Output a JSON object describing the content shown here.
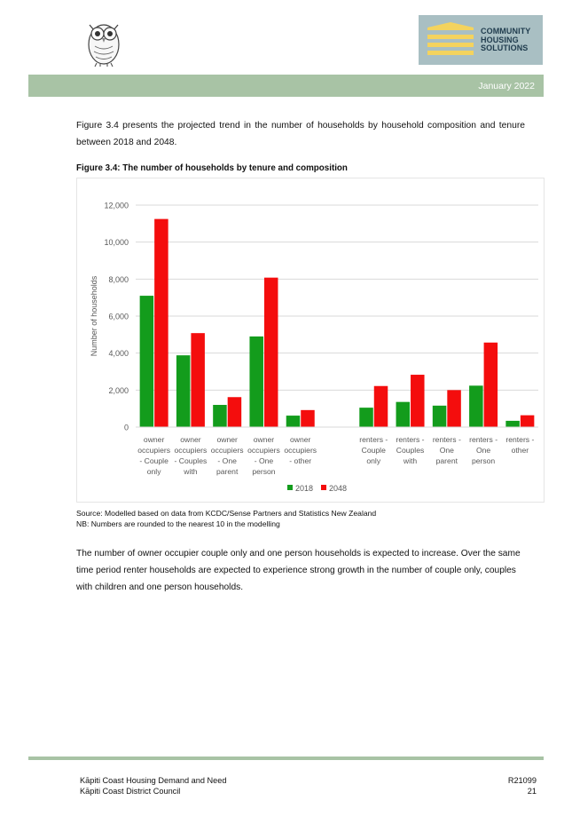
{
  "header": {
    "logo_lines": [
      "COMMUNITY",
      "HOUSING",
      "SOLUTIONS"
    ],
    "date": "January 2022"
  },
  "intro_text": "Figure 3.4 presents the projected trend in the number of households by household composition and tenure between 2018 and 2048.",
  "figure_title": "Figure 3.4:  The number of households by tenure and composition",
  "chart_data": {
    "type": "bar",
    "ylabel": "Number of households",
    "ylim": [
      0,
      12000
    ],
    "yticks": [
      "0",
      "2,000",
      "4,000",
      "6,000",
      "8,000",
      "10,000",
      "12,000"
    ],
    "categories": [
      [
        "owner",
        "occupiers",
        "- Couple",
        "only"
      ],
      [
        "owner",
        "occupiers",
        "- Couples",
        "with"
      ],
      [
        "owner",
        "occupiers",
        "- One",
        "parent"
      ],
      [
        "owner",
        "occupiers",
        "- One",
        "person"
      ],
      [
        "owner",
        "occupiers",
        "- other"
      ],
      [
        ""
      ],
      [
        "renters -",
        "Couple",
        "only"
      ],
      [
        "renters -",
        "Couples",
        "with"
      ],
      [
        "renters -",
        "One",
        "parent"
      ],
      [
        "renters -",
        "One",
        "person"
      ],
      [
        "renters -",
        "other"
      ]
    ],
    "series": [
      {
        "name": "2018",
        "color": "#139c1c",
        "values": [
          7100,
          3880,
          1200,
          4900,
          620,
          0,
          1050,
          1360,
          1160,
          2240,
          340
        ]
      },
      {
        "name": "2048",
        "color": "#f40d0d",
        "values": [
          11250,
          5080,
          1620,
          8080,
          920,
          0,
          2220,
          2830,
          2000,
          4570,
          640
        ]
      }
    ],
    "grid": true,
    "legend_position": "bottom"
  },
  "source_lines": [
    "Source:  Modelled based on data from KCDC/Sense Partners and Statistics New Zealand",
    "NB:  Numbers are rounded to the nearest 10 in the modelling"
  ],
  "closing_text": "The number of owner occupier couple only and one person households is expected to increase.  Over the same time period renter households are expected to experience strong growth in the number of couple only, couples with children and one person households.",
  "footer": {
    "left_lines": [
      "Kāpiti Coast Housing Demand and Need",
      "Kāpiti Coast District Council"
    ],
    "right_lines": [
      "R21099",
      "21"
    ]
  }
}
